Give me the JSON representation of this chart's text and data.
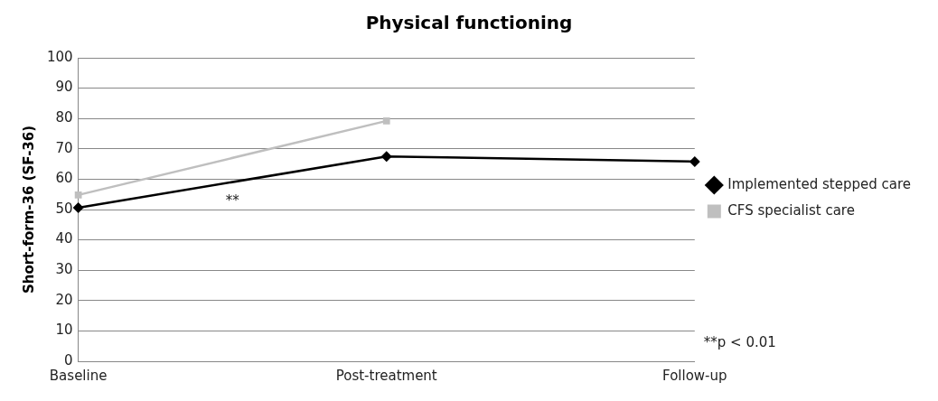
{
  "chart_data": {
    "type": "line",
    "title": "Physical functioning",
    "ylabel": "Short-form-36 (SF-36)",
    "categories": [
      "Baseline",
      "Post-treatment",
      "Follow-up"
    ],
    "series": [
      {
        "name": "Implemented stepped care",
        "color": "#000000",
        "marker": "diamond",
        "values": [
          50.6,
          67.5,
          65.8
        ]
      },
      {
        "name": "CFS specialist care",
        "color": "#bfbfbf",
        "marker": "square",
        "values": [
          54.8,
          79.2,
          null
        ]
      }
    ],
    "ylim": [
      0,
      100
    ],
    "yticks": [
      0,
      10,
      20,
      30,
      40,
      50,
      60,
      70,
      80,
      90,
      100
    ],
    "grid": "y",
    "legend": "right",
    "line_style": "solid",
    "annotations": [
      "**",
      "**p < 0.01"
    ]
  }
}
